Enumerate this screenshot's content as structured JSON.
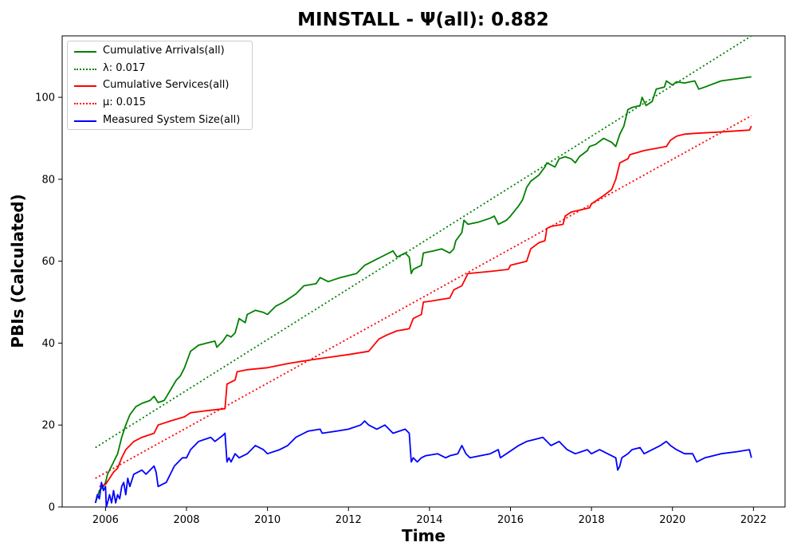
{
  "chart_data": {
    "type": "line",
    "title": "MINSTALL -  Ψ(all): 0.882",
    "xlabel": "Time",
    "ylabel": "PBIs (Calculated)",
    "xlim": [
      2004.93,
      2022.78
    ],
    "ylim": [
      0,
      115
    ],
    "x_ticks": [
      2006,
      2008,
      2010,
      2012,
      2014,
      2016,
      2018,
      2020,
      2022
    ],
    "y_ticks": [
      0,
      20,
      40,
      60,
      80,
      100
    ],
    "legend_position": "top-left",
    "grid": false,
    "series": [
      {
        "name": "Cumulative Arrivals(all)",
        "color": "#008000",
        "style": "solid",
        "points": [
          [
            2005.75,
            1
          ],
          [
            2005.85,
            4
          ],
          [
            2005.95,
            5
          ],
          [
            2006.0,
            6
          ],
          [
            2006.05,
            8
          ],
          [
            2006.1,
            9
          ],
          [
            2006.2,
            11
          ],
          [
            2006.3,
            13
          ],
          [
            2006.4,
            17
          ],
          [
            2006.5,
            20
          ],
          [
            2006.6,
            22.5
          ],
          [
            2006.75,
            24.5
          ],
          [
            2006.9,
            25.3
          ],
          [
            2007.1,
            26
          ],
          [
            2007.2,
            27
          ],
          [
            2007.3,
            25.5
          ],
          [
            2007.45,
            26
          ],
          [
            2007.6,
            28.5
          ],
          [
            2007.75,
            31
          ],
          [
            2007.85,
            32
          ],
          [
            2007.95,
            34
          ],
          [
            2008.1,
            38
          ],
          [
            2008.3,
            39.5
          ],
          [
            2008.5,
            40
          ],
          [
            2008.7,
            40.5
          ],
          [
            2008.75,
            39
          ],
          [
            2008.9,
            40.5
          ],
          [
            2009.0,
            42
          ],
          [
            2009.1,
            41.5
          ],
          [
            2009.2,
            42.5
          ],
          [
            2009.3,
            46
          ],
          [
            2009.45,
            45
          ],
          [
            2009.5,
            47
          ],
          [
            2009.7,
            48
          ],
          [
            2009.9,
            47.5
          ],
          [
            2010.0,
            47
          ],
          [
            2010.2,
            49
          ],
          [
            2010.4,
            50
          ],
          [
            2010.7,
            52
          ],
          [
            2010.9,
            54
          ],
          [
            2011.2,
            54.5
          ],
          [
            2011.3,
            56
          ],
          [
            2011.5,
            55
          ],
          [
            2011.8,
            56
          ],
          [
            2012.2,
            57
          ],
          [
            2012.4,
            59
          ],
          [
            2012.7,
            60.5
          ],
          [
            2012.8,
            61
          ],
          [
            2013.1,
            62.5
          ],
          [
            2013.2,
            61
          ],
          [
            2013.4,
            62
          ],
          [
            2013.5,
            61
          ],
          [
            2013.55,
            57
          ],
          [
            2013.6,
            58
          ],
          [
            2013.8,
            59
          ],
          [
            2013.85,
            62
          ],
          [
            2014.1,
            62.5
          ],
          [
            2014.3,
            63
          ],
          [
            2014.5,
            62
          ],
          [
            2014.6,
            63
          ],
          [
            2014.65,
            65
          ],
          [
            2014.8,
            67
          ],
          [
            2014.85,
            70
          ],
          [
            2014.95,
            69
          ],
          [
            2015.2,
            69.5
          ],
          [
            2015.5,
            70.5
          ],
          [
            2015.6,
            71
          ],
          [
            2015.7,
            69
          ],
          [
            2015.9,
            70
          ],
          [
            2016.0,
            71
          ],
          [
            2016.2,
            73.5
          ],
          [
            2016.3,
            75
          ],
          [
            2016.4,
            78
          ],
          [
            2016.5,
            79.5
          ],
          [
            2016.7,
            81
          ],
          [
            2016.85,
            83
          ],
          [
            2016.9,
            84
          ],
          [
            2017.1,
            83
          ],
          [
            2017.2,
            85
          ],
          [
            2017.35,
            85.5
          ],
          [
            2017.5,
            85
          ],
          [
            2017.6,
            84
          ],
          [
            2017.7,
            85.5
          ],
          [
            2017.9,
            87
          ],
          [
            2017.95,
            88
          ],
          [
            2018.1,
            88.5
          ],
          [
            2018.3,
            90
          ],
          [
            2018.5,
            89
          ],
          [
            2018.6,
            88
          ],
          [
            2018.7,
            91
          ],
          [
            2018.8,
            93
          ],
          [
            2018.9,
            97
          ],
          [
            2019.0,
            97.5
          ],
          [
            2019.2,
            98
          ],
          [
            2019.25,
            100
          ],
          [
            2019.35,
            98
          ],
          [
            2019.5,
            99
          ],
          [
            2019.6,
            102
          ],
          [
            2019.8,
            102.5
          ],
          [
            2019.85,
            104
          ],
          [
            2020.0,
            103
          ],
          [
            2020.1,
            103.8
          ],
          [
            2020.3,
            103.5
          ],
          [
            2020.55,
            104
          ],
          [
            2020.65,
            102
          ],
          [
            2020.8,
            102.5
          ],
          [
            2021.2,
            104
          ],
          [
            2021.95,
            105
          ]
        ]
      },
      {
        "name": "λ: 0.017",
        "color": "#008000",
        "style": "dotted",
        "points": [
          [
            2005.75,
            14.5
          ],
          [
            2021.95,
            115
          ]
        ]
      },
      {
        "name": "Cumulative Services(all)",
        "color": "#ff0000",
        "style": "solid",
        "points": [
          [
            2005.85,
            5
          ],
          [
            2006.0,
            5.5
          ],
          [
            2006.1,
            7
          ],
          [
            2006.2,
            8.5
          ],
          [
            2006.3,
            9.5
          ],
          [
            2006.4,
            12
          ],
          [
            2006.5,
            14
          ],
          [
            2006.7,
            16
          ],
          [
            2006.9,
            17
          ],
          [
            2007.2,
            18
          ],
          [
            2007.3,
            20
          ],
          [
            2007.6,
            21
          ],
          [
            2007.95,
            22
          ],
          [
            2008.1,
            23
          ],
          [
            2008.5,
            23.5
          ],
          [
            2008.95,
            24
          ],
          [
            2009.0,
            30
          ],
          [
            2009.2,
            31
          ],
          [
            2009.25,
            33
          ],
          [
            2009.5,
            33.5
          ],
          [
            2010.0,
            34
          ],
          [
            2010.5,
            35
          ],
          [
            2011.0,
            35.8
          ],
          [
            2011.5,
            36.5
          ],
          [
            2012.0,
            37.2
          ],
          [
            2012.5,
            38
          ],
          [
            2012.75,
            41
          ],
          [
            2012.95,
            42
          ],
          [
            2013.2,
            43
          ],
          [
            2013.5,
            43.5
          ],
          [
            2013.6,
            46
          ],
          [
            2013.8,
            47
          ],
          [
            2013.85,
            50
          ],
          [
            2014.0,
            50.2
          ],
          [
            2014.5,
            51
          ],
          [
            2014.6,
            53
          ],
          [
            2014.8,
            54
          ],
          [
            2014.9,
            56
          ],
          [
            2014.95,
            57
          ],
          [
            2015.5,
            57.5
          ],
          [
            2015.95,
            58
          ],
          [
            2016.0,
            59
          ],
          [
            2016.4,
            60
          ],
          [
            2016.5,
            63
          ],
          [
            2016.7,
            64.5
          ],
          [
            2016.85,
            65
          ],
          [
            2016.9,
            68
          ],
          [
            2017.0,
            68.5
          ],
          [
            2017.3,
            69
          ],
          [
            2017.35,
            71
          ],
          [
            2017.5,
            72
          ],
          [
            2017.95,
            73
          ],
          [
            2018.0,
            74
          ],
          [
            2018.3,
            76
          ],
          [
            2018.5,
            77.5
          ],
          [
            2018.6,
            80
          ],
          [
            2018.7,
            84
          ],
          [
            2018.9,
            85
          ],
          [
            2018.95,
            86
          ],
          [
            2019.3,
            87
          ],
          [
            2019.85,
            88
          ],
          [
            2019.95,
            89.5
          ],
          [
            2020.1,
            90.5
          ],
          [
            2020.3,
            91
          ],
          [
            2020.55,
            91.2
          ],
          [
            2021.1,
            91.5
          ],
          [
            2021.9,
            92
          ],
          [
            2021.95,
            93
          ]
        ]
      },
      {
        "name": "μ: 0.015",
        "color": "#ff0000",
        "style": "dotted",
        "points": [
          [
            2005.75,
            7
          ],
          [
            2021.95,
            95.5
          ]
        ]
      },
      {
        "name": "Measured System Size(all)",
        "color": "#0000ff",
        "style": "solid",
        "points": [
          [
            2005.75,
            1
          ],
          [
            2005.8,
            3
          ],
          [
            2005.85,
            2
          ],
          [
            2005.9,
            6
          ],
          [
            2005.95,
            4
          ],
          [
            2006.0,
            5
          ],
          [
            2006.02,
            0
          ],
          [
            2006.05,
            1
          ],
          [
            2006.1,
            3
          ],
          [
            2006.15,
            1
          ],
          [
            2006.2,
            4
          ],
          [
            2006.25,
            1
          ],
          [
            2006.3,
            3
          ],
          [
            2006.35,
            2
          ],
          [
            2006.4,
            5
          ],
          [
            2006.45,
            6
          ],
          [
            2006.5,
            3
          ],
          [
            2006.55,
            7
          ],
          [
            2006.6,
            5
          ],
          [
            2006.7,
            8
          ],
          [
            2006.8,
            8.5
          ],
          [
            2006.9,
            9
          ],
          [
            2007.0,
            8
          ],
          [
            2007.1,
            9
          ],
          [
            2007.2,
            10
          ],
          [
            2007.25,
            8.5
          ],
          [
            2007.3,
            5
          ],
          [
            2007.4,
            5.5
          ],
          [
            2007.5,
            6
          ],
          [
            2007.6,
            8
          ],
          [
            2007.7,
            10
          ],
          [
            2007.8,
            11
          ],
          [
            2007.9,
            12
          ],
          [
            2008.0,
            12
          ],
          [
            2008.1,
            14
          ],
          [
            2008.3,
            16
          ],
          [
            2008.6,
            17
          ],
          [
            2008.7,
            16
          ],
          [
            2008.9,
            17.5
          ],
          [
            2008.95,
            18
          ],
          [
            2009.0,
            11
          ],
          [
            2009.05,
            12
          ],
          [
            2009.1,
            11
          ],
          [
            2009.2,
            13
          ],
          [
            2009.3,
            12
          ],
          [
            2009.5,
            13
          ],
          [
            2009.6,
            14
          ],
          [
            2009.7,
            15
          ],
          [
            2009.9,
            14
          ],
          [
            2010.0,
            13
          ],
          [
            2010.3,
            14
          ],
          [
            2010.5,
            15
          ],
          [
            2010.6,
            16
          ],
          [
            2010.7,
            17
          ],
          [
            2010.9,
            18
          ],
          [
            2011.0,
            18.5
          ],
          [
            2011.3,
            19
          ],
          [
            2011.35,
            18
          ],
          [
            2011.7,
            18.5
          ],
          [
            2012.0,
            19
          ],
          [
            2012.3,
            20
          ],
          [
            2012.4,
            21
          ],
          [
            2012.5,
            20
          ],
          [
            2012.7,
            19
          ],
          [
            2012.9,
            20
          ],
          [
            2013.0,
            19
          ],
          [
            2013.1,
            18
          ],
          [
            2013.4,
            19
          ],
          [
            2013.5,
            18
          ],
          [
            2013.55,
            11
          ],
          [
            2013.6,
            12
          ],
          [
            2013.7,
            11
          ],
          [
            2013.8,
            12
          ],
          [
            2013.9,
            12.5
          ],
          [
            2014.2,
            13
          ],
          [
            2014.4,
            12
          ],
          [
            2014.5,
            12.5
          ],
          [
            2014.7,
            13
          ],
          [
            2014.8,
            15
          ],
          [
            2014.9,
            13
          ],
          [
            2015.0,
            12
          ],
          [
            2015.5,
            13
          ],
          [
            2015.7,
            14
          ],
          [
            2015.75,
            12
          ],
          [
            2015.9,
            13
          ],
          [
            2016.2,
            15
          ],
          [
            2016.4,
            16
          ],
          [
            2016.6,
            16.5
          ],
          [
            2016.8,
            17
          ],
          [
            2017.0,
            15
          ],
          [
            2017.2,
            16
          ],
          [
            2017.4,
            14
          ],
          [
            2017.6,
            13
          ],
          [
            2017.9,
            14
          ],
          [
            2018.0,
            13
          ],
          [
            2018.2,
            14
          ],
          [
            2018.4,
            13
          ],
          [
            2018.6,
            12
          ],
          [
            2018.65,
            9
          ],
          [
            2018.7,
            10
          ],
          [
            2018.75,
            12
          ],
          [
            2018.9,
            13
          ],
          [
            2019.0,
            14
          ],
          [
            2019.2,
            14.5
          ],
          [
            2019.3,
            13
          ],
          [
            2019.5,
            14
          ],
          [
            2019.7,
            15
          ],
          [
            2019.85,
            16
          ],
          [
            2019.95,
            15
          ],
          [
            2020.1,
            14
          ],
          [
            2020.3,
            13
          ],
          [
            2020.5,
            13
          ],
          [
            2020.6,
            11
          ],
          [
            2020.8,
            12
          ],
          [
            2021.2,
            13
          ],
          [
            2021.6,
            13.5
          ],
          [
            2021.9,
            14
          ],
          [
            2021.95,
            12
          ]
        ]
      }
    ]
  }
}
